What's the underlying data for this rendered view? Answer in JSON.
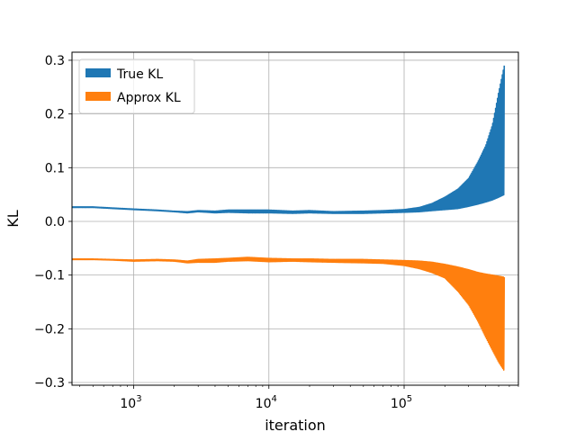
{
  "chart_data": {
    "type": "line",
    "title": "",
    "xlabel": "iteration",
    "ylabel": "KL",
    "xscale": "log",
    "xlim": [
      350,
      700000
    ],
    "ylim": [
      -0.305,
      0.315
    ],
    "grid": true,
    "legend_position": "top-left",
    "x_major_ticks": [
      {
        "value": 1000,
        "base": "10",
        "exp": "3"
      },
      {
        "value": 10000,
        "base": "10",
        "exp": "4"
      },
      {
        "value": 100000,
        "base": "10",
        "exp": "5"
      }
    ],
    "y_ticks": [
      {
        "value": 0.3,
        "label": "0.3"
      },
      {
        "value": 0.2,
        "label": "0.2"
      },
      {
        "value": 0.1,
        "label": "0.1"
      },
      {
        "value": 0.0,
        "label": "0.0"
      },
      {
        "value": -0.1,
        "label": "−0.1"
      },
      {
        "value": -0.2,
        "label": "−0.2"
      },
      {
        "value": -0.3,
        "label": "−0.3"
      }
    ],
    "series": [
      {
        "name": "True KL",
        "color": "#1f77b4",
        "x": [
          350,
          500,
          700,
          1000,
          1500,
          2000,
          2500,
          3000,
          4000,
          5000,
          7000,
          10000,
          15000,
          20000,
          30000,
          50000,
          70000,
          100000,
          130000,
          160000,
          200000,
          250000,
          300000,
          350000,
          400000,
          450000,
          500000,
          550000
        ],
        "y_low": [
          0.026,
          0.026,
          0.024,
          0.022,
          0.02,
          0.018,
          0.016,
          0.018,
          0.016,
          0.017,
          0.016,
          0.016,
          0.015,
          0.016,
          0.015,
          0.015,
          0.016,
          0.017,
          0.018,
          0.02,
          0.022,
          0.024,
          0.028,
          0.032,
          0.036,
          0.04,
          0.045,
          0.05
        ],
        "y_high": [
          0.027,
          0.027,
          0.025,
          0.023,
          0.021,
          0.019,
          0.018,
          0.02,
          0.019,
          0.021,
          0.021,
          0.021,
          0.019,
          0.02,
          0.018,
          0.019,
          0.02,
          0.022,
          0.026,
          0.033,
          0.045,
          0.06,
          0.08,
          0.11,
          0.14,
          0.18,
          0.24,
          0.29
        ]
      },
      {
        "name": "Approx KL",
        "color": "#ff7f0e",
        "x": [
          350,
          500,
          700,
          1000,
          1500,
          2000,
          2500,
          3000,
          4000,
          5000,
          7000,
          10000,
          15000,
          20000,
          30000,
          50000,
          70000,
          100000,
          130000,
          160000,
          200000,
          250000,
          300000,
          350000,
          400000,
          450000,
          500000,
          550000
        ],
        "y_low": [
          -0.071,
          -0.071,
          -0.072,
          -0.074,
          -0.073,
          -0.074,
          -0.077,
          -0.076,
          -0.076,
          -0.074,
          -0.073,
          -0.075,
          -0.074,
          -0.075,
          -0.076,
          -0.077,
          -0.078,
          -0.082,
          -0.088,
          -0.095,
          -0.105,
          -0.13,
          -0.155,
          -0.185,
          -0.215,
          -0.24,
          -0.262,
          -0.278
        ],
        "y_high": [
          -0.07,
          -0.07,
          -0.071,
          -0.072,
          -0.071,
          -0.072,
          -0.074,
          -0.071,
          -0.07,
          -0.069,
          -0.067,
          -0.069,
          -0.07,
          -0.07,
          -0.071,
          -0.071,
          -0.072,
          -0.073,
          -0.074,
          -0.076,
          -0.08,
          -0.085,
          -0.09,
          -0.095,
          -0.098,
          -0.1,
          -0.102,
          -0.104
        ]
      }
    ]
  }
}
